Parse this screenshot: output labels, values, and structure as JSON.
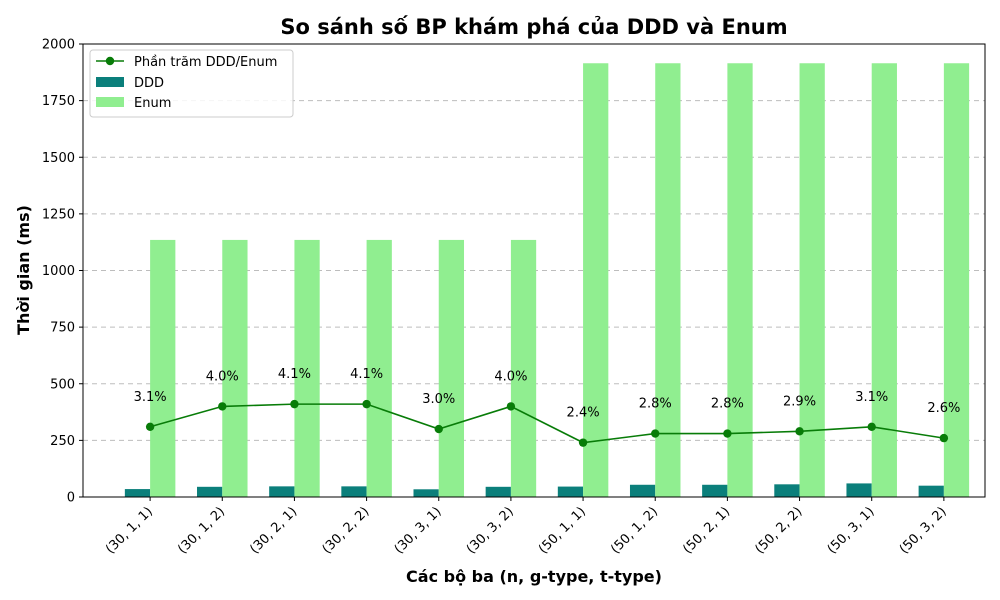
{
  "chart_data": {
    "type": "bar",
    "title": "So sánh số BP khám phá của DDD và Enum",
    "xlabel": "Các bộ ba (n, g-type, t-type)",
    "ylabel": "Thời gian (ms)",
    "ylim": [
      0,
      2000
    ],
    "yticks": [
      0,
      250,
      500,
      750,
      1000,
      1250,
      1500,
      1750,
      2000
    ],
    "grid": "y-dashed",
    "legend_position": "top-left",
    "categories": [
      "(30, 1, 1)",
      "(30, 1, 2)",
      "(30, 2, 1)",
      "(30, 2, 2)",
      "(30, 3, 1)",
      "(30, 3, 2)",
      "(50, 1, 1)",
      "(50, 1, 2)",
      "(50, 2, 1)",
      "(50, 2, 2)",
      "(50, 3, 1)",
      "(50, 3, 2)"
    ],
    "series": [
      {
        "name": "DDD",
        "type": "bar",
        "color": "#0b7f7b",
        "values": [
          35,
          45,
          47,
          47,
          34,
          45,
          46,
          54,
          54,
          56,
          60,
          50
        ]
      },
      {
        "name": "Enum",
        "type": "bar",
        "color": "#90ee90",
        "values": [
          1135,
          1135,
          1135,
          1135,
          1135,
          1135,
          1915,
          1915,
          1915,
          1915,
          1915,
          1915
        ]
      },
      {
        "name": "Phần trăm DDD/Enum",
        "type": "line",
        "color": "#087c08",
        "values": [
          310,
          400,
          410,
          410,
          300,
          400,
          240,
          280,
          280,
          290,
          310,
          260
        ],
        "labels": [
          "3.1%",
          "4.0%",
          "4.1%",
          "4.1%",
          "3.0%",
          "4.0%",
          "2.4%",
          "2.8%",
          "2.8%",
          "2.9%",
          "3.1%",
          "2.6%"
        ]
      }
    ]
  }
}
